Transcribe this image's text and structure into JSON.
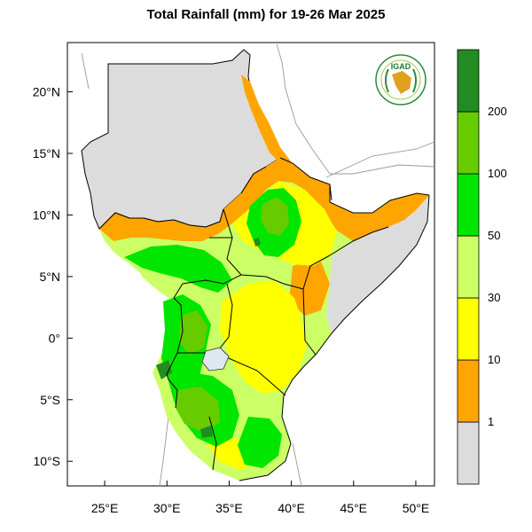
{
  "title": "Total Rainfall (mm) for 19-26 Mar 2025",
  "map": {
    "lon_range": [
      22,
      51.5
    ],
    "lat_range": [
      -12,
      24
    ],
    "lon_ticks": [
      {
        "value": 25,
        "label": "25°E"
      },
      {
        "value": 30,
        "label": "30°E"
      },
      {
        "value": 35,
        "label": "35°E"
      },
      {
        "value": 40,
        "label": "40°E"
      },
      {
        "value": 45,
        "label": "45°E"
      },
      {
        "value": 50,
        "label": "50°E"
      }
    ],
    "lat_ticks": [
      {
        "value": 20,
        "label": "20°N"
      },
      {
        "value": 15,
        "label": "15°N"
      },
      {
        "value": 10,
        "label": "10°N"
      },
      {
        "value": 5,
        "label": "5°N"
      },
      {
        "value": 0,
        "label": "0°"
      },
      {
        "value": -5,
        "label": "5°S"
      },
      {
        "value": -10,
        "label": "10°S"
      }
    ]
  },
  "colorbar": {
    "bins": [
      {
        "color": "#dcdcdc"
      },
      {
        "color": "#ffa500"
      },
      {
        "color": "#ffff00"
      },
      {
        "color": "#ccff66"
      },
      {
        "color": "#00e600"
      },
      {
        "color": "#66cc00"
      },
      {
        "color": "#228b22"
      }
    ],
    "labels": [
      "1",
      "10",
      "30",
      "50",
      "100",
      "200"
    ]
  },
  "logo": {
    "text": "IGAD",
    "icon": "igad-logo-icon"
  }
}
